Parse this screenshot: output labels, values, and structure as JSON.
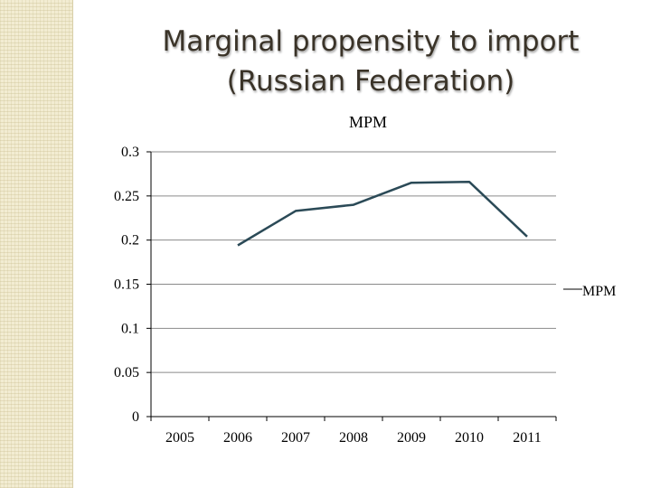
{
  "slide": {
    "title_line1": "Marginal propensity to import",
    "title_line2": "(Russian Federation)"
  },
  "chart_data": {
    "type": "line",
    "title": "MPM",
    "categories": [
      "2005",
      "2006",
      "2007",
      "2008",
      "2009",
      "2010",
      "2011"
    ],
    "series": [
      {
        "name": "MPM",
        "values": [
          null,
          0.194,
          0.233,
          0.24,
          0.265,
          0.266,
          0.204
        ],
        "color": "#2b4a57"
      }
    ],
    "ylim": [
      0,
      0.3
    ],
    "yticks": [
      "0",
      "0.05",
      "0.1",
      "0.15",
      "0.2",
      "0.25",
      "0.3"
    ],
    "grid": true,
    "legend": "right"
  },
  "colors": {
    "background": "#ffffff",
    "side_band": "#f2ecd2",
    "title_text": "#3a3328",
    "gridline": "#8a8a8a"
  }
}
